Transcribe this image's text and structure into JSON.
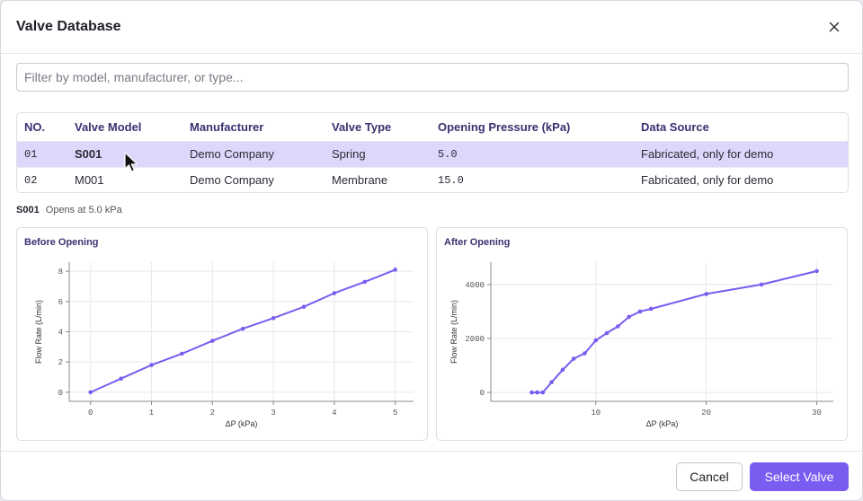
{
  "dialog": {
    "title": "Valve Database",
    "close_icon": "close-icon"
  },
  "filter": {
    "placeholder": "Filter by model, manufacturer, or type...",
    "value": ""
  },
  "table": {
    "headers": [
      "NO.",
      "Valve Model",
      "Manufacturer",
      "Valve Type",
      "Opening Pressure (kPa)",
      "Data Source"
    ],
    "rows": [
      {
        "no": "01",
        "model": "S001",
        "manufacturer": "Demo Company",
        "type": "Spring",
        "pressure": "5.0",
        "source": "Fabricated, only for demo",
        "selected": true
      },
      {
        "no": "02",
        "model": "M001",
        "manufacturer": "Demo Company",
        "type": "Membrane",
        "pressure": "15.0",
        "source": "Fabricated, only for demo",
        "selected": false
      }
    ]
  },
  "summary": {
    "model": "S001",
    "text": "Opens at 5.0 kPa"
  },
  "colors": {
    "accent": "#7b5cf0",
    "selected_row": "#dcd8fb",
    "header_text": "#3b3170"
  },
  "chart_data": [
    {
      "type": "line",
      "title": "Before Opening",
      "xlabel": "ΔP (kPa)",
      "ylabel": "Flow Rate (L/min)",
      "x": [
        0,
        0.5,
        1,
        1.5,
        2,
        2.5,
        3,
        3.5,
        4,
        4.5,
        5
      ],
      "y": [
        0.0,
        0.9,
        1.8,
        2.55,
        3.4,
        4.2,
        4.9,
        5.65,
        6.55,
        7.3,
        8.1
      ],
      "xlim": [
        -0.35,
        5.3
      ],
      "ylim": [
        -0.6,
        8.6
      ],
      "xticks": [
        0,
        1,
        2,
        3,
        4,
        5
      ],
      "yticks": [
        0,
        2,
        4,
        6,
        8
      ],
      "grid": true
    },
    {
      "type": "line",
      "title": "After Opening",
      "xlabel": "ΔP (kPa)",
      "ylabel": "Flow Rate (L/min)",
      "x": [
        4.2,
        4.7,
        5.2,
        6,
        7,
        8,
        9,
        10,
        11,
        12,
        13,
        14,
        15,
        20,
        25,
        30
      ],
      "y": [
        0,
        0,
        0,
        380,
        840,
        1250,
        1450,
        1930,
        2200,
        2450,
        2800,
        3000,
        3100,
        3650,
        4000,
        4500
      ],
      "xlim": [
        0.5,
        31.5
      ],
      "ylim": [
        -330,
        4830
      ],
      "xticks": [
        10,
        20,
        30
      ],
      "yticks": [
        0,
        2000,
        4000
      ],
      "grid": true
    }
  ],
  "footer": {
    "cancel_label": "Cancel",
    "select_label": "Select Valve"
  }
}
